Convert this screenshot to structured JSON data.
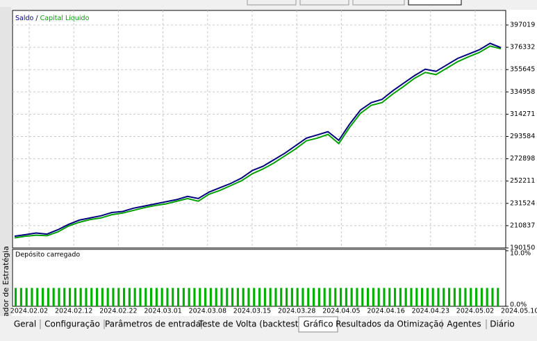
{
  "side_panel_title": "Testador de Estratégia",
  "tabs": [
    "Geral",
    "Configuração",
    "Parâmetros de entrada",
    "Teste de Volta (backtest)",
    "Gráfico",
    "Resultados da Otimização",
    "Agentes",
    "Diário"
  ],
  "active_tab": "Gráfico",
  "chart_data": [
    {
      "type": "line",
      "legend_separator": "/",
      "series": [
        {
          "name": "Saldo",
          "color": "#00007f",
          "values": [
            201000,
            202500,
            204000,
            203000,
            207000,
            212000,
            216000,
            218000,
            220000,
            223000,
            224000,
            227000,
            229000,
            231000,
            233000,
            235000,
            238000,
            236000,
            242000,
            246000,
            250000,
            255000,
            262000,
            266000,
            272000,
            278000,
            285000,
            292000,
            295000,
            298000,
            290000,
            305000,
            318000,
            325000,
            328000,
            336000,
            343000,
            350000,
            356000,
            354000,
            360000,
            366000,
            370000,
            374000,
            380000,
            376000
          ]
        },
        {
          "name": "Capital Líquido",
          "color": "#00a000",
          "values": [
            199500,
            201000,
            202000,
            201500,
            205000,
            210500,
            214000,
            216500,
            218000,
            221000,
            222500,
            225000,
            227500,
            229500,
            231000,
            233500,
            236000,
            233500,
            240000,
            243500,
            248000,
            252500,
            259000,
            263500,
            269000,
            275500,
            282000,
            289500,
            292000,
            295500,
            287000,
            302000,
            315000,
            322500,
            325000,
            333000,
            340000,
            347500,
            353000,
            351000,
            357000,
            363000,
            367500,
            371500,
            377500,
            375000
          ]
        }
      ],
      "ylim": [
        190150,
        410550
      ],
      "yticks": [
        190150,
        210837,
        231524,
        252211,
        272898,
        293584,
        314271,
        334958,
        355645,
        376332,
        397019
      ],
      "grid": true
    },
    {
      "type": "bar",
      "title": "Depósito carregado",
      "color": "#00b000",
      "values": [
        3.3,
        3.3,
        3.3,
        3.3,
        3.3,
        3.3,
        3.3,
        3.3,
        3.3,
        3.3,
        3.3,
        3.3,
        3.3,
        3.3,
        3.3,
        3.3,
        3.3,
        3.3,
        3.3,
        3.3,
        3.3,
        3.3,
        3.3,
        3.3,
        3.3,
        3.3,
        3.3,
        3.3,
        3.3,
        3.3,
        3.3,
        3.3,
        3.3,
        3.3,
        3.3,
        3.3,
        3.3,
        3.3,
        3.3,
        3.3,
        3.3,
        3.3,
        3.3,
        3.3,
        3.3,
        3.3,
        3.3,
        3.3,
        3.3,
        3.3,
        3.3,
        3.3,
        3.3,
        3.3,
        3.3,
        3.3,
        3.3,
        3.3,
        3.3,
        3.3,
        3.3,
        3.3,
        3.3,
        3.3,
        3.3,
        3.3,
        3.3,
        3.3,
        3.3,
        3.3,
        3.3,
        3.3,
        3.3,
        3.3,
        3.3,
        3.3,
        3.3,
        3.3,
        3.3,
        3.3,
        3.3,
        3.3,
        3.3,
        3.3,
        3.3,
        3.3,
        3.3,
        3.3,
        3.3,
        3.3
      ],
      "ylim": [
        0,
        10
      ],
      "yticks": [
        {
          "value": 0,
          "label": "0.0%"
        },
        {
          "value": 10,
          "label": "10.0%"
        }
      ],
      "x_labels": [
        "2024.02.02",
        "2024.02.12",
        "2024.02.22",
        "2024.03.01",
        "2024.03.08",
        "2024.03.15",
        "2024.03.28",
        "2024.04.05",
        "2024.04.16",
        "2024.04.23",
        "2024.05.02",
        "2024.05.10"
      ]
    }
  ]
}
